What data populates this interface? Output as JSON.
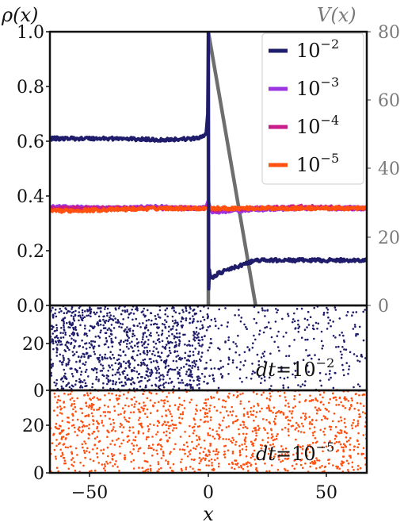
{
  "chart_data": [
    {
      "type": "line",
      "panel": "top",
      "ylabel": "ρ(x)",
      "ylabel_right": "V(x)",
      "xlim": [
        -67,
        67
      ],
      "ylim": [
        0,
        1.0
      ],
      "ylim_right": [
        0,
        80
      ],
      "yticks": [
        "0.0",
        "0.2",
        "0.4",
        "0.6",
        "0.8",
        "1.0"
      ],
      "yticks_right": [
        "0",
        "20",
        "40",
        "60",
        "80"
      ],
      "legend": "top-right",
      "grid": false,
      "series": [
        {
          "name": "10^-2",
          "color": "#1f1c6b",
          "x": [
            -67,
            -40,
            -20,
            -5,
            -1,
            -0.3,
            0,
            0.2,
            0.5,
            1,
            5,
            10,
            15,
            20,
            30,
            50,
            67
          ],
          "y": [
            0.61,
            0.61,
            0.605,
            0.61,
            0.625,
            0.7,
            1.0,
            0.06,
            0.13,
            0.1,
            0.12,
            0.135,
            0.15,
            0.165,
            0.165,
            0.165,
            0.165
          ]
        },
        {
          "name": "10^-3",
          "color": "#9a35e0",
          "x": [
            -67,
            -40,
            -20,
            -5,
            -1,
            0,
            1,
            3,
            10,
            20,
            40,
            67
          ],
          "y": [
            0.36,
            0.355,
            0.36,
            0.355,
            0.36,
            0.385,
            0.345,
            0.34,
            0.345,
            0.35,
            0.355,
            0.355
          ]
        },
        {
          "name": "10^-4",
          "color": "#c81c88",
          "x": [
            -67,
            -40,
            -20,
            -5,
            -1,
            0,
            1,
            5,
            20,
            40,
            67
          ],
          "y": [
            0.355,
            0.355,
            0.355,
            0.355,
            0.355,
            0.37,
            0.35,
            0.35,
            0.355,
            0.36,
            0.355
          ]
        },
        {
          "name": "10^-5",
          "color": "#ff5010",
          "x": [
            -67,
            -40,
            -20,
            -5,
            0,
            5,
            20,
            40,
            67
          ],
          "y": [
            0.345,
            0.35,
            0.355,
            0.355,
            0.355,
            0.355,
            0.355,
            0.355,
            0.355
          ]
        }
      ],
      "potential": {
        "color": "#6e6e6e",
        "x": [
          0,
          0,
          20
        ],
        "y": [
          0,
          80,
          0
        ]
      },
      "legend_entries": [
        {
          "base": "10",
          "exp": "−2",
          "color": "#1f1c6b"
        },
        {
          "base": "10",
          "exp": "−3",
          "color": "#9a35e0"
        },
        {
          "base": "10",
          "exp": "−4",
          "color": "#c81c88"
        },
        {
          "base": "10",
          "exp": "−5",
          "color": "#ff5010"
        }
      ]
    },
    {
      "type": "scatter",
      "panel": "middle",
      "xlim": [
        -67,
        67
      ],
      "ylim": [
        0,
        35
      ],
      "yticks": [
        "0",
        "20"
      ],
      "color": "#1f1c6b",
      "annotation": {
        "prefix": "dt",
        "eq": "=",
        "base": "10",
        "exp": "−2"
      },
      "density_left": 0.61,
      "density_right": 0.165
    },
    {
      "type": "scatter",
      "panel": "bottom",
      "xlim": [
        -67,
        67
      ],
      "ylim": [
        0,
        35
      ],
      "yticks": [
        "0",
        "20"
      ],
      "xticks": [
        "−50",
        "0",
        "50"
      ],
      "xlabel": "x",
      "color": "#ff5010",
      "annotation": {
        "prefix": "dt",
        "eq": "=",
        "base": "10",
        "exp": "−5"
      },
      "density_left": 0.355,
      "density_right": 0.355
    }
  ]
}
